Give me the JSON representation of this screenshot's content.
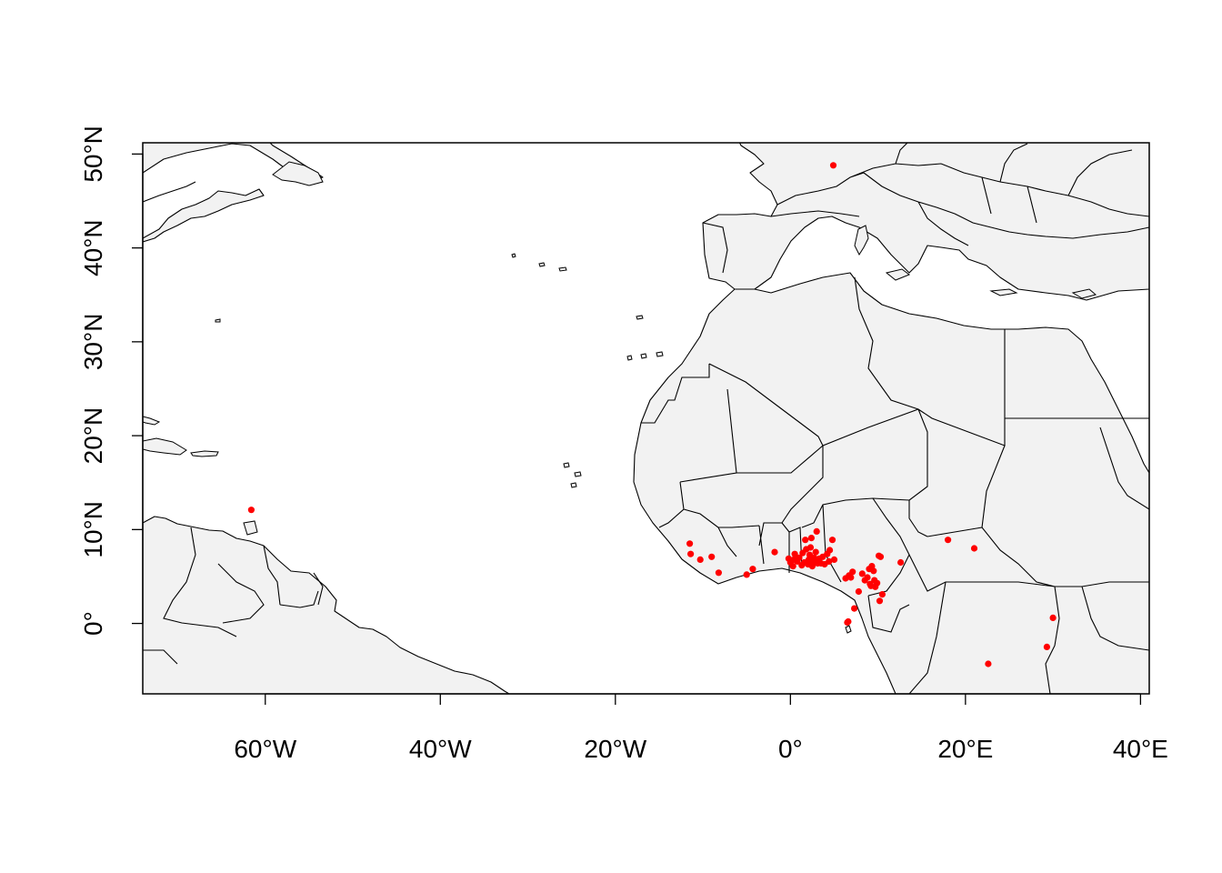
{
  "chart_data": {
    "type": "scatter",
    "title": "",
    "xlabel": "",
    "ylabel": "",
    "xlim": [
      -74,
      41
    ],
    "ylim": [
      -7.5,
      51.2
    ],
    "x_ticks": [
      {
        "value": -60,
        "label": "60°W"
      },
      {
        "value": -40,
        "label": "40°W"
      },
      {
        "value": -20,
        "label": "20°W"
      },
      {
        "value": 0,
        "label": "0°"
      },
      {
        "value": 20,
        "label": "20°E"
      },
      {
        "value": 40,
        "label": "40°E"
      }
    ],
    "y_ticks": [
      {
        "value": 0,
        "label": "0°"
      },
      {
        "value": 10,
        "label": "10°N"
      },
      {
        "value": 20,
        "label": "20°N"
      },
      {
        "value": 30,
        "label": "30°N"
      },
      {
        "value": 40,
        "label": "40°N"
      },
      {
        "value": 50,
        "label": "50°N"
      }
    ],
    "land_color": "#f2f2f2",
    "border_color": "#000000",
    "point_color": "#ff0000",
    "legend": "none",
    "grid": false,
    "series": [
      {
        "points": [
          [
            4.9,
            48.8
          ],
          [
            -61.6,
            12.1
          ],
          [
            -11.5,
            8.5
          ],
          [
            -11.4,
            7.4
          ],
          [
            -10.3,
            6.8
          ],
          [
            -9.0,
            7.1
          ],
          [
            -8.2,
            5.4
          ],
          [
            -5.0,
            5.2
          ],
          [
            -4.3,
            5.8
          ],
          [
            -1.8,
            7.6
          ],
          [
            -0.2,
            6.9
          ],
          [
            0.0,
            6.5
          ],
          [
            0.3,
            6.1
          ],
          [
            0.4,
            6.8
          ],
          [
            0.5,
            7.4
          ],
          [
            0.8,
            6.6
          ],
          [
            1.0,
            7.0
          ],
          [
            1.3,
            6.2
          ],
          [
            1.4,
            7.5
          ],
          [
            1.6,
            6.5
          ],
          [
            1.7,
            8.9
          ],
          [
            1.8,
            7.9
          ],
          [
            2.0,
            6.3
          ],
          [
            2.1,
            6.8
          ],
          [
            2.2,
            7.3
          ],
          [
            2.3,
            8.1
          ],
          [
            2.4,
            9.1
          ],
          [
            2.5,
            6.1
          ],
          [
            2.6,
            6.5
          ],
          [
            2.7,
            7.0
          ],
          [
            2.8,
            6.7
          ],
          [
            2.9,
            7.6
          ],
          [
            3.0,
            9.8
          ],
          [
            3.1,
            6.4
          ],
          [
            3.3,
            6.9
          ],
          [
            3.5,
            6.4
          ],
          [
            3.7,
            7.1
          ],
          [
            3.9,
            6.3
          ],
          [
            4.2,
            7.4
          ],
          [
            4.4,
            6.6
          ],
          [
            4.5,
            7.8
          ],
          [
            4.8,
            8.9
          ],
          [
            5.0,
            6.8
          ],
          [
            6.3,
            4.8
          ],
          [
            6.5,
            0.1
          ],
          [
            6.6,
            0.2
          ],
          [
            6.7,
            5.1
          ],
          [
            6.9,
            4.9
          ],
          [
            7.1,
            5.5
          ],
          [
            7.3,
            1.6
          ],
          [
            7.8,
            3.4
          ],
          [
            8.2,
            5.3
          ],
          [
            8.5,
            4.6
          ],
          [
            8.8,
            4.9
          ],
          [
            9.0,
            5.8
          ],
          [
            9.1,
            4.2
          ],
          [
            9.2,
            4.0
          ],
          [
            9.3,
            6.1
          ],
          [
            9.5,
            5.6
          ],
          [
            9.6,
            4.6
          ],
          [
            9.7,
            3.9
          ],
          [
            9.9,
            4.3
          ],
          [
            10.1,
            7.2
          ],
          [
            10.2,
            2.4
          ],
          [
            10.5,
            3.1
          ],
          [
            10.3,
            7.1
          ],
          [
            12.6,
            6.5
          ],
          [
            18.0,
            8.9
          ],
          [
            21.0,
            8.0
          ],
          [
            22.6,
            -4.3
          ],
          [
            29.3,
            -2.5
          ],
          [
            30.0,
            0.6
          ]
        ]
      }
    ]
  }
}
